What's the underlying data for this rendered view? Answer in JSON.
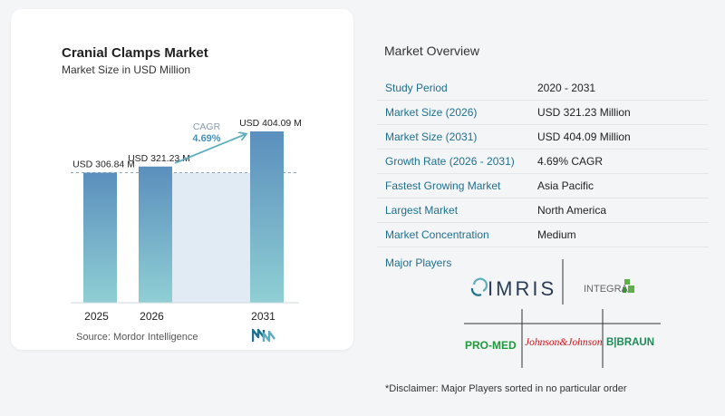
{
  "chart": {
    "title": "Cranial Clamps Market",
    "subtitle": "Market Size in USD Million",
    "source": "Source:  Mordor Intelligence",
    "cagr_label": "CAGR",
    "cagr_value": "4.69%"
  },
  "chart_data": {
    "type": "bar",
    "title": "Cranial Clamps Market",
    "subtitle": "Market Size in USD Million",
    "categories": [
      "2025",
      "2026",
      "2031"
    ],
    "values": [
      306.84,
      321.23,
      404.09
    ],
    "data_labels": [
      "USD 306.84 M",
      "USD 321.23 M",
      "USD 404.09 M"
    ],
    "annotation": {
      "label": "CAGR",
      "value": "4.69%"
    },
    "ylim": [
      0,
      404.09
    ],
    "grid": false
  },
  "colors": {
    "bar_2025": "#5b8fbd",
    "bar_2026": "#5c8fbc",
    "bar_2031": "#5b8fbd",
    "bar_bottom": "#8fcfd4",
    "shade": "#e1ebf4",
    "arrow": "#5eaec0",
    "key_text": "#1f6f8e"
  },
  "overview": {
    "title": "Market Overview",
    "rows": [
      {
        "key": "Study Period",
        "value": "2020 - 2031"
      },
      {
        "key": "Market Size (2026)",
        "value": "USD 321.23 Million"
      },
      {
        "key": "Market Size (2031)",
        "value": "USD 404.09 Million"
      },
      {
        "key": "Growth Rate (2026 - 2031)",
        "value": "4.69% CAGR"
      },
      {
        "key": "Fastest Growing Market",
        "value": "Asia Pacific"
      },
      {
        "key": "Largest Market",
        "value": "North America"
      },
      {
        "key": "Market Concentration",
        "value": "Medium"
      }
    ]
  },
  "players": {
    "title": "Major Players",
    "imris": "IMRIS",
    "integra": "INTEGRA",
    "promed": "PRO-MED",
    "jnj": "Johnson&Johnson",
    "bbraun": "B|BRAUN"
  },
  "disclaimer": "*Disclaimer: Major Players sorted in no particular order"
}
